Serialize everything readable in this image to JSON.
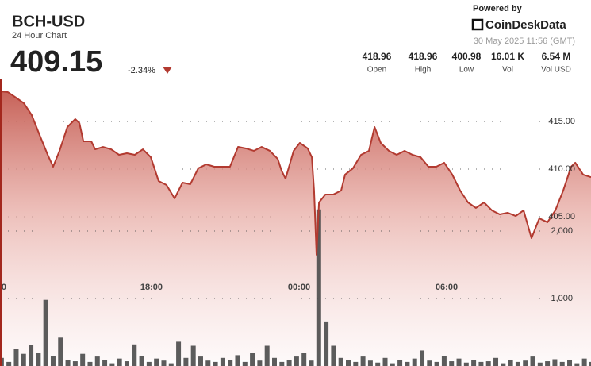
{
  "header": {
    "symbol": "BCH-USD",
    "subtitle": "24 Hour Chart",
    "price": "409.15",
    "change": "-2.34%",
    "powered_by": "Powered by",
    "brand": "CoinDeskData",
    "timestamp": "30 May 2025 11:56 (GMT)",
    "stats": [
      {
        "value": "418.96",
        "label": "Open"
      },
      {
        "value": "418.96",
        "label": "High"
      },
      {
        "value": "400.98",
        "label": "Low"
      },
      {
        "value": "16.01 K",
        "label": "Vol"
      },
      {
        "value": "6.54 M",
        "label": "Vol USD"
      }
    ]
  },
  "chart_data": [
    {
      "type": "line",
      "color": "#b23a30",
      "x": [
        11.84,
        12.16,
        12.49,
        12.81,
        13.13,
        13.45,
        13.78,
        14.0,
        14.26,
        14.58,
        14.9,
        15.07,
        15.23,
        15.55,
        15.71,
        16.03,
        16.36,
        16.68,
        17.0,
        17.32,
        17.65,
        17.97,
        18.29,
        18.61,
        18.94,
        19.26,
        19.58,
        19.9,
        20.23,
        20.55,
        20.87,
        21.19,
        21.52,
        21.84,
        22.16,
        22.48,
        22.81,
        23.13,
        23.29,
        23.45,
        23.78,
        24.03,
        24.35,
        24.52,
        24.61,
        24.71,
        24.81,
        25.07,
        25.39,
        25.71,
        25.87,
        26.19,
        26.52,
        26.84,
        27.07,
        27.32,
        27.65,
        27.97,
        28.29,
        28.61,
        28.94,
        29.26,
        29.58,
        29.9,
        30.23,
        30.55,
        30.87,
        31.19,
        31.52,
        31.84,
        32.16,
        32.48,
        32.81,
        33.13,
        33.45,
        33.77,
        34.1,
        34.42,
        34.74,
        35.06,
        35.23,
        35.55,
        35.87
      ],
      "values": [
        418.17,
        418.08,
        417.5,
        416.92,
        415.67,
        413.58,
        411.5,
        410.25,
        411.92,
        414.42,
        415.25,
        414.83,
        412.92,
        412.92,
        412.08,
        412.33,
        412.08,
        411.5,
        411.67,
        411.5,
        412.08,
        411.25,
        408.75,
        408.33,
        406.92,
        408.58,
        408.42,
        410.08,
        410.5,
        410.25,
        410.25,
        410.25,
        412.33,
        412.17,
        411.92,
        412.33,
        411.92,
        411.08,
        409.83,
        409.0,
        411.92,
        412.75,
        412.17,
        411.25,
        407.75,
        401.0,
        406.5,
        407.33,
        407.33,
        407.75,
        409.42,
        410.08,
        411.5,
        411.92,
        414.42,
        412.75,
        411.92,
        411.5,
        411.92,
        411.5,
        411.25,
        410.25,
        410.25,
        410.67,
        409.42,
        407.75,
        406.5,
        405.92,
        406.5,
        405.67,
        405.25,
        405.42,
        405.08,
        405.67,
        402.75,
        404.83,
        404.42,
        405.67,
        407.75,
        410.25,
        410.67,
        409.42,
        409.15
      ],
      "xlim": [
        11.84,
        35.87
      ],
      "xticks": [
        {
          "value": 12,
          "label": "0"
        },
        {
          "value": 18,
          "label": "18:00"
        },
        {
          "value": 24,
          "label": "00:00"
        },
        {
          "value": 30,
          "label": "06:00"
        }
      ],
      "ylim": [
        390,
        419
      ],
      "yticks": [
        {
          "value": 405,
          "label": "405.00"
        },
        {
          "value": 410,
          "label": "410.00"
        },
        {
          "value": 415,
          "label": "415.00"
        }
      ],
      "grid": true
    },
    {
      "type": "bar",
      "color": "#4a4a4a",
      "x": [
        11.9,
        12.2,
        12.5,
        12.8,
        13.1,
        13.4,
        13.7,
        14.0,
        14.3,
        14.6,
        14.9,
        15.2,
        15.5,
        15.8,
        16.1,
        16.4,
        16.7,
        17.0,
        17.3,
        17.6,
        17.9,
        18.2,
        18.5,
        18.8,
        19.1,
        19.4,
        19.7,
        20.0,
        20.3,
        20.6,
        20.9,
        21.2,
        21.5,
        21.8,
        22.1,
        22.4,
        22.7,
        23.0,
        23.3,
        23.6,
        23.9,
        24.2,
        24.5,
        24.8,
        25.1,
        25.4,
        25.7,
        26.0,
        26.3,
        26.6,
        26.9,
        27.2,
        27.5,
        27.8,
        28.1,
        28.4,
        28.7,
        29.0,
        29.3,
        29.6,
        29.9,
        30.2,
        30.5,
        30.8,
        31.1,
        31.4,
        31.7,
        32.0,
        32.3,
        32.6,
        32.9,
        33.2,
        33.5,
        33.8,
        34.1,
        34.4,
        34.7,
        35.0,
        35.3,
        35.6,
        35.9
      ],
      "values": [
        120,
        60,
        250,
        180,
        310,
        200,
        980,
        150,
        420,
        90,
        70,
        180,
        60,
        140,
        90,
        40,
        110,
        70,
        320,
        150,
        60,
        110,
        80,
        40,
        360,
        120,
        300,
        140,
        80,
        60,
        120,
        90,
        160,
        60,
        200,
        80,
        300,
        120,
        60,
        90,
        140,
        200,
        80,
        2320,
        660,
        300,
        120,
        90,
        60,
        140,
        80,
        50,
        120,
        40,
        90,
        60,
        110,
        230,
        80,
        60,
        150,
        70,
        110,
        50,
        90,
        60,
        70,
        120,
        40,
        90,
        60,
        80,
        140,
        50,
        70,
        100,
        60,
        90,
        40,
        110,
        60
      ],
      "xlim": [
        11.84,
        35.87
      ],
      "ylim": [
        0,
        2400
      ],
      "yticks": [
        {
          "value": 1000,
          "label": "1,000"
        },
        {
          "value": 2000,
          "label": "2,000"
        }
      ],
      "grid": true
    }
  ]
}
